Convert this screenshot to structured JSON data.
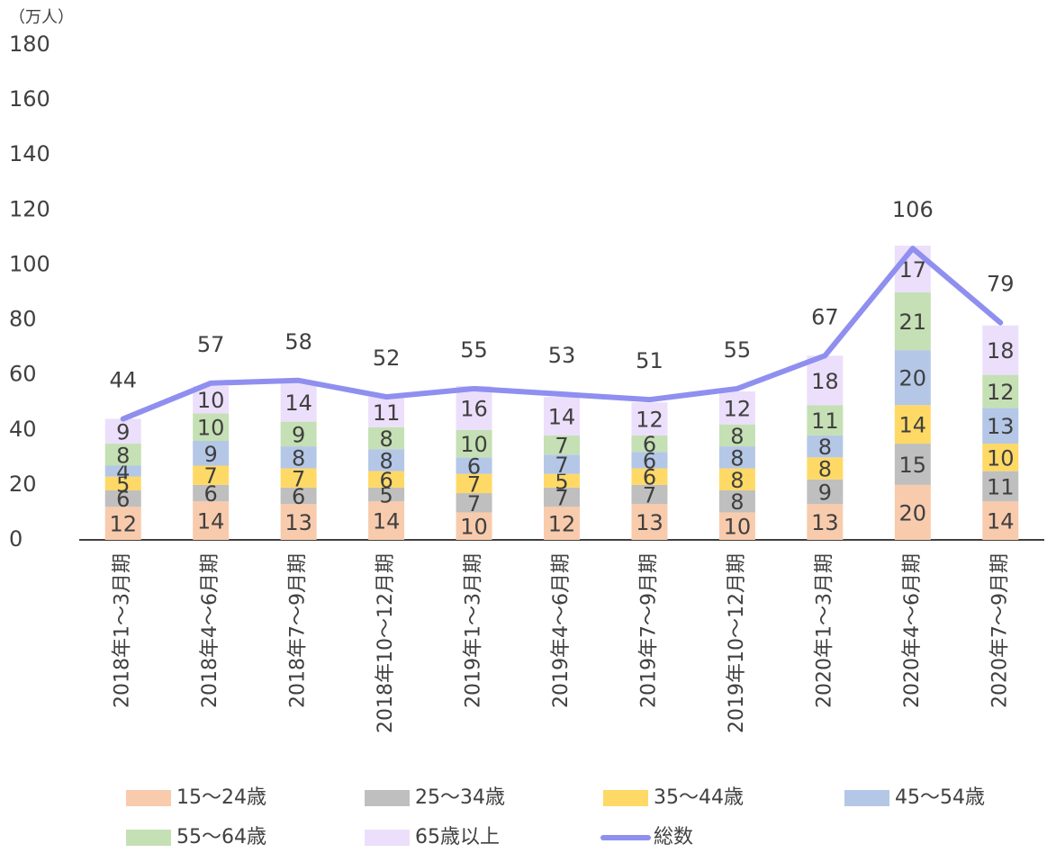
{
  "chart_data": {
    "type": "bar",
    "stacked": true,
    "y_unit": "（万人）",
    "categories": [
      "2018年1～3月期",
      "2018年4～6月期",
      "2018年7～9月期",
      "2018年10～12月期",
      "2019年1～3月期",
      "2019年4～6月期",
      "2019年7～9月期",
      "2019年10～12月期",
      "2020年1～3月期",
      "2020年4～6月期",
      "2020年7～9月期"
    ],
    "series": [
      {
        "name": "15～24歳",
        "color": "#f8cbad",
        "values": [
          12,
          14,
          13,
          14,
          10,
          12,
          13,
          10,
          13,
          20,
          14
        ]
      },
      {
        "name": "25～34歳",
        "color": "#bfbfbf",
        "values": [
          6,
          6,
          6,
          5,
          7,
          7,
          7,
          8,
          9,
          15,
          11
        ]
      },
      {
        "name": "35～44歳",
        "color": "#ffd966",
        "values": [
          5,
          7,
          7,
          6,
          7,
          5,
          6,
          8,
          8,
          14,
          10
        ]
      },
      {
        "name": "45～54歳",
        "color": "#b4c7e7",
        "values": [
          4,
          9,
          8,
          8,
          6,
          7,
          6,
          8,
          8,
          20,
          13
        ]
      },
      {
        "name": "55～64歳",
        "color": "#c5e0b4",
        "values": [
          8,
          10,
          9,
          8,
          10,
          7,
          6,
          8,
          11,
          21,
          12
        ]
      },
      {
        "name": "65歳以上",
        "color": "#ecdffb",
        "values": [
          9,
          10,
          14,
          11,
          16,
          14,
          12,
          12,
          18,
          17,
          18
        ]
      },
      {
        "name": "総数",
        "type": "line",
        "color": "#8f8ff0",
        "values": [
          44,
          57,
          58,
          52,
          55,
          53,
          51,
          55,
          67,
          106,
          79
        ]
      }
    ],
    "ylim": [
      0,
      180
    ],
    "yticks": [
      0,
      20,
      40,
      60,
      80,
      100,
      120,
      140,
      160,
      180
    ],
    "grid": false
  }
}
